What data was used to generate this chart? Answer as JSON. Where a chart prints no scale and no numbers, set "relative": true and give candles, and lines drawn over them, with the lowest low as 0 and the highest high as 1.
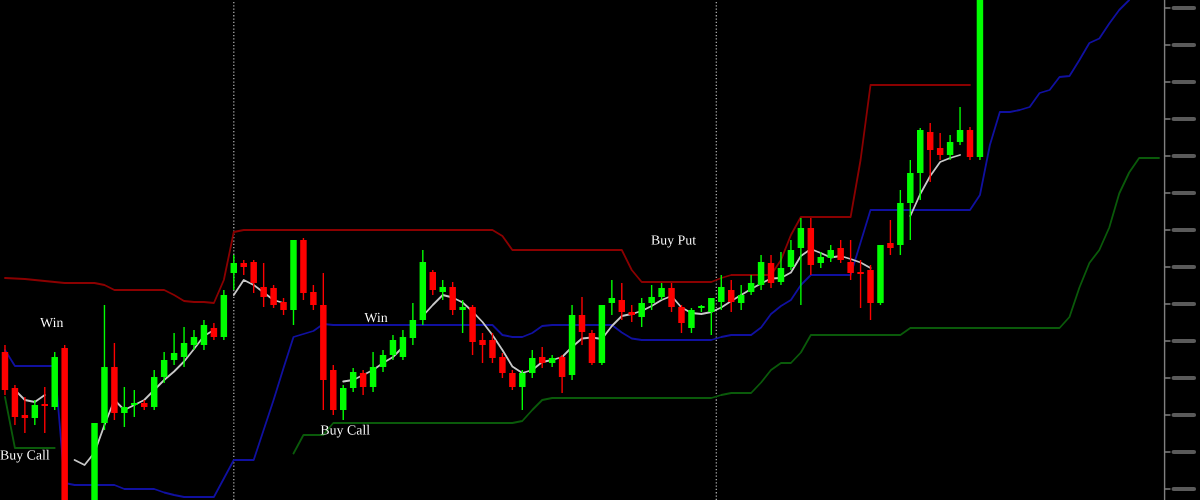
{
  "chart_data": {
    "type": "candlestick",
    "relative": true,
    "categories": [
      null,
      null,
      null,
      null,
      null,
      null,
      null,
      null,
      null,
      null,
      null,
      null,
      null,
      null,
      null,
      null,
      null,
      null,
      null,
      null,
      null,
      null,
      null,
      null,
      null,
      null,
      null,
      null,
      null,
      null,
      null,
      null,
      null,
      null,
      null,
      null,
      null,
      null,
      null,
      null,
      null,
      null,
      null,
      null,
      null,
      null,
      null,
      null,
      null,
      null,
      null,
      null,
      null,
      null,
      null,
      null,
      null,
      null,
      null,
      null,
      null,
      null,
      null,
      null,
      null,
      null,
      null,
      null,
      null,
      null,
      null,
      null,
      null,
      null,
      null,
      null,
      null,
      null,
      null,
      null,
      null,
      null,
      null,
      null,
      null,
      null,
      null,
      null,
      null,
      null,
      null,
      null,
      null,
      null,
      null,
      null,
      null,
      null,
      null,
      null,
      null,
      null,
      null,
      null,
      null,
      null,
      null,
      null,
      null,
      null,
      null,
      null,
      null,
      null,
      null,
      null,
      null
    ],
    "ohlc": [
      [
        0.296,
        0.31,
        0.21,
        0.22
      ],
      [
        0.224,
        0.23,
        0.15,
        0.166
      ],
      [
        0.17,
        0.206,
        0.134,
        0.164
      ],
      [
        0.164,
        0.2,
        0.15,
        0.19
      ],
      [
        0.19,
        0.226,
        0.134,
        0.188
      ],
      [
        0.186,
        0.296,
        0.18,
        0.286
      ],
      [
        0.304,
        0.31,
        0,
        0
      ],
      null,
      null,
      [
        0,
        0.154,
        0,
        0.154
      ],
      [
        0.154,
        0.39,
        0.14,
        0.266
      ],
      [
        0.266,
        0.314,
        0.16,
        0.174
      ],
      [
        0.174,
        0.226,
        0.146,
        0.186
      ],
      [
        0.19,
        0.22,
        0.166,
        0.192
      ],
      [
        0.194,
        0.2,
        0.18,
        0.186
      ],
      [
        0.186,
        0.26,
        0.18,
        0.246
      ],
      [
        0.246,
        0.296,
        0.234,
        0.28
      ],
      [
        0.28,
        0.334,
        0.27,
        0.294
      ],
      [
        0.286,
        0.346,
        0.266,
        0.314
      ],
      [
        0.31,
        0.34,
        0.3,
        0.326
      ],
      [
        0.31,
        0.36,
        0.3,
        0.35
      ],
      [
        0.344,
        0.354,
        0.32,
        0.326
      ],
      [
        0.326,
        0.42,
        0.32,
        0.41
      ],
      [
        0.454,
        0.49,
        0.42,
        0.474
      ],
      [
        0.474,
        0.48,
        0.45,
        0.466
      ],
      [
        0.476,
        0.48,
        0.414,
        0.434
      ],
      [
        0.426,
        0.474,
        0.386,
        0.406
      ],
      [
        0.424,
        0.43,
        0.384,
        0.39
      ],
      [
        0.396,
        0.404,
        0.37,
        0.38
      ],
      [
        0.38,
        0.52,
        0.35,
        0.52
      ],
      [
        0.52,
        0.524,
        0.4,
        0.414
      ],
      [
        0.416,
        0.43,
        0.38,
        0.39
      ],
      [
        0.39,
        0.454,
        0.18,
        0.24
      ],
      [
        0.26,
        0.27,
        0.17,
        0.18
      ],
      [
        0.18,
        0.23,
        0.16,
        0.224
      ],
      [
        0.224,
        0.264,
        0.216,
        0.256
      ],
      [
        0.254,
        0.26,
        0.21,
        0.226
      ],
      [
        0.226,
        0.296,
        0.216,
        0.266
      ],
      [
        0.266,
        0.3,
        0.256,
        0.29
      ],
      [
        0.29,
        0.33,
        0.28,
        0.32
      ],
      [
        0.286,
        0.34,
        0.28,
        0.326
      ],
      [
        0.324,
        0.394,
        0.31,
        0.36
      ],
      [
        0.36,
        0.5,
        0.35,
        0.476
      ],
      [
        0.456,
        0.46,
        0.41,
        0.42
      ],
      [
        0.416,
        0.44,
        0.4,
        0.426
      ],
      [
        0.426,
        0.436,
        0.37,
        0.38
      ],
      [
        0.38,
        0.4,
        0.334,
        0.386
      ],
      [
        0.386,
        0.39,
        0.29,
        0.316
      ],
      [
        0.32,
        0.334,
        0.274,
        0.31
      ],
      [
        0.32,
        0.334,
        0.274,
        0.284
      ],
      [
        0.286,
        0.294,
        0.244,
        0.254
      ],
      [
        0.254,
        0.26,
        0.22,
        0.226
      ],
      [
        0.226,
        0.26,
        0.18,
        0.254
      ],
      [
        0.254,
        0.3,
        0.244,
        0.284
      ],
      [
        0.286,
        0.306,
        0.264,
        0.274
      ],
      [
        0.274,
        0.29,
        0.266,
        0.284
      ],
      [
        0.286,
        0.29,
        0.214,
        0.246
      ],
      [
        0.25,
        0.39,
        0.24,
        0.37
      ],
      [
        0.37,
        0.406,
        0.31,
        0.336
      ],
      [
        0.334,
        0.34,
        0.27,
        0.274
      ],
      [
        0.274,
        0.39,
        0.27,
        0.39
      ],
      [
        0.394,
        0.44,
        0.37,
        0.404
      ],
      [
        0.4,
        0.434,
        0.36,
        0.376
      ],
      [
        0.376,
        0.39,
        0.356,
        0.37
      ],
      [
        0.366,
        0.404,
        0.346,
        0.394
      ],
      [
        0.394,
        0.43,
        0.38,
        0.406
      ],
      [
        0.406,
        0.434,
        0.4,
        0.424
      ],
      [
        0.424,
        0.434,
        0.376,
        0.386
      ],
      [
        0.386,
        0.39,
        0.334,
        0.354
      ],
      [
        0.344,
        0.384,
        0.334,
        0.38
      ],
      [
        0.384,
        0.39,
        0.376,
        0.386
      ],
      [
        0.376,
        0.404,
        0.33,
        0.404
      ],
      [
        0.396,
        0.45,
        0.38,
        0.426
      ],
      [
        0.42,
        0.44,
        0.376,
        0.396
      ],
      [
        0.394,
        0.43,
        0.38,
        0.41
      ],
      [
        0.416,
        0.45,
        0.41,
        0.434
      ],
      [
        0.43,
        0.49,
        0.42,
        0.476
      ],
      [
        0.474,
        0.49,
        0.424,
        0.434
      ],
      [
        0.436,
        0.496,
        0.43,
        0.464
      ],
      [
        0.466,
        0.52,
        0.46,
        0.5
      ],
      [
        0.504,
        0.564,
        0.39,
        0.544
      ],
      [
        0.544,
        0.564,
        0.45,
        0.47
      ],
      [
        0.474,
        0.496,
        0.464,
        0.486
      ],
      [
        0.484,
        0.51,
        0.476,
        0.5
      ],
      [
        0.504,
        0.52,
        0.474,
        0.48
      ],
      [
        0.476,
        0.52,
        0.44,
        0.454
      ],
      [
        0.456,
        0.48,
        0.384,
        0.452
      ],
      [
        0.46,
        0.47,
        0.36,
        0.394
      ],
      [
        0.394,
        0.51,
        0.39,
        0.51
      ],
      [
        0.514,
        0.56,
        0.49,
        0.504
      ],
      [
        0.51,
        0.62,
        0.49,
        0.594
      ],
      [
        0.594,
        0.68,
        0.52,
        0.654
      ],
      [
        0.654,
        0.744,
        0.6,
        0.74
      ],
      [
        0.736,
        0.754,
        0.636,
        0.7
      ],
      [
        0.704,
        0.734,
        0.68,
        0.69
      ],
      [
        0.69,
        0.73,
        0.68,
        0.716
      ],
      [
        0.716,
        0.786,
        0.71,
        0.74
      ],
      [
        0.74,
        0.746,
        0.68,
        0.686
      ],
      [
        0.686,
        1,
        0.68,
        1
      ],
      null,
      null,
      null,
      null,
      null,
      null,
      null,
      null,
      null,
      null,
      null,
      null,
      null,
      null,
      null,
      null,
      null,
      null
    ],
    "colors": [
      "#ff0000",
      "#ff0000",
      "#ff0000",
      "#00ff00",
      "#ff0000",
      "#00ff00",
      "#ff0000",
      null,
      null,
      "#00ff00",
      "#00ff00",
      "#ff0000",
      "#00ff00",
      "#00ff00",
      "#ff0000",
      "#00ff00",
      "#00ff00",
      "#00ff00",
      "#00ff00",
      "#00ff00",
      "#00ff00",
      "#ff0000",
      "#00ff00",
      "#00ff00",
      "#ff0000",
      "#ff0000",
      "#ff0000",
      "#ff0000",
      "#ff0000",
      "#00ff00",
      "#ff0000",
      "#ff0000",
      "#ff0000",
      "#ff0000",
      "#00ff00",
      "#00ff00",
      "#ff0000",
      "#00ff00",
      "#00ff00",
      "#00ff00",
      "#00ff00",
      "#00ff00",
      "#00ff00",
      "#ff0000",
      "#00ff00",
      "#ff0000",
      "#00ff00",
      "#ff0000",
      "#ff0000",
      "#ff0000",
      "#ff0000",
      "#ff0000",
      "#00ff00",
      "#00ff00",
      "#ff0000",
      "#00ff00",
      "#ff0000",
      "#00ff00",
      "#ff0000",
      "#ff0000",
      "#00ff00",
      "#00ff00",
      "#ff0000",
      "#ff0000",
      "#00ff00",
      "#00ff00",
      "#00ff00",
      "#ff0000",
      "#ff0000",
      "#00ff00",
      "#00ff00",
      "#00ff00",
      "#00ff00",
      "#ff0000",
      "#00ff00",
      "#00ff00",
      "#00ff00",
      "#ff0000",
      "#00ff00",
      "#00ff00",
      "#00ff00",
      "#ff0000",
      "#00ff00",
      "#00ff00",
      "#ff0000",
      "#ff0000",
      "#ff0000",
      "#ff0000",
      "#00ff00",
      "#ff0000",
      "#00ff00",
      "#00ff00",
      "#00ff00",
      "#ff0000",
      "#ff0000",
      "#00ff00",
      "#00ff00",
      "#ff0000",
      "#00ff00",
      null,
      null,
      null,
      null,
      null,
      null,
      null,
      null,
      null,
      null,
      null,
      null,
      null,
      null,
      null,
      null,
      null,
      null
    ],
    "series": [
      {
        "type": "line",
        "color": "#8b0000",
        "values": [
          0.444,
          0.443,
          0.442,
          0.44,
          0.438,
          0.436,
          0.434,
          0.434,
          0.434,
          0.434,
          0.43,
          0.42,
          0.42,
          0.42,
          0.42,
          0.42,
          0.42,
          0.41,
          0.398,
          0.396,
          0.396,
          0.394,
          0.44,
          0.536,
          0.54,
          0.54,
          0.54,
          0.54,
          0.54,
          0.54,
          0.54,
          0.54,
          0.54,
          0.54,
          0.54,
          0.54,
          0.54,
          0.54,
          0.54,
          0.54,
          0.54,
          0.54,
          0.54,
          0.54,
          0.54,
          0.54,
          0.54,
          0.54,
          0.54,
          0.54,
          0.528,
          0.5,
          0.5,
          0.5,
          0.5,
          0.5,
          0.5,
          0.5,
          0.5,
          0.5,
          0.5,
          0.5,
          0.5,
          0.46,
          0.436,
          0.436,
          0.436,
          0.436,
          0.436,
          0.436,
          0.436,
          0.436,
          0.444,
          0.45,
          0.45,
          0.45,
          0.45,
          0.45,
          0.48,
          0.53,
          0.566,
          0.566,
          0.566,
          0.566,
          0.566,
          0.566,
          0.68,
          0.83,
          0.83,
          0.83,
          0.83,
          0.83,
          0.83,
          0.83,
          0.83,
          0.83,
          0.83,
          0.83,
          null,
          null,
          null,
          null,
          null,
          null,
          null,
          null,
          null,
          null,
          null,
          null,
          null,
          null,
          null,
          null,
          null,
          null,
          null
        ]
      },
      {
        "type": "line",
        "color": "#1010a0",
        "values": [
          0.3,
          0.268,
          0.268,
          0.268,
          0.268,
          0.268,
          0.034,
          0.03,
          0.03,
          0.03,
          0.03,
          0.03,
          0.022,
          0.022,
          0.022,
          0.022,
          0.015,
          0.01,
          0.006,
          0.006,
          0.006,
          0.006,
          0.043,
          0.08,
          0.08,
          0.08,
          0.14,
          0.2,
          0.264,
          0.326,
          0.332,
          0.338,
          0.352,
          0.35,
          0.35,
          0.35,
          0.35,
          0.35,
          0.35,
          0.35,
          0.35,
          0.35,
          0.35,
          0.35,
          0.35,
          0.35,
          0.35,
          0.35,
          0.35,
          0.35,
          0.33,
          0.326,
          0.326,
          0.334,
          0.348,
          0.35,
          0.35,
          0.35,
          0.35,
          0.35,
          0.35,
          0.35,
          0.335,
          0.323,
          0.32,
          0.32,
          0.32,
          0.32,
          0.32,
          0.32,
          0.32,
          0.32,
          0.326,
          0.33,
          0.33,
          0.33,
          0.345,
          0.372,
          0.388,
          0.4,
          0.43,
          0.45,
          0.45,
          0.45,
          0.45,
          0.45,
          0.515,
          0.58,
          0.58,
          0.58,
          0.58,
          0.58,
          0.58,
          0.58,
          0.58,
          0.58,
          0.58,
          0.58,
          0.61,
          0.71,
          0.776,
          0.776,
          0.78,
          0.786,
          0.814,
          0.82,
          0.846,
          0.848,
          0.88,
          0.914,
          0.923,
          0.953,
          0.98,
          1,
          null,
          null,
          null
        ]
      },
      {
        "type": "line",
        "color": "#0a5a0a",
        "values": [
          0.206,
          0.104,
          0.104,
          0.104,
          0.104,
          0.104,
          null,
          null,
          null,
          null,
          null,
          null,
          null,
          null,
          null,
          null,
          null,
          null,
          null,
          null,
          null,
          null,
          null,
          null,
          null,
          null,
          null,
          null,
          null,
          0.093,
          0.13,
          0.13,
          0.13,
          0.154,
          0.154,
          0.154,
          0.154,
          0.154,
          0.154,
          0.154,
          0.154,
          0.154,
          0.154,
          0.154,
          0.154,
          0.154,
          0.154,
          0.154,
          0.154,
          0.154,
          0.154,
          0.154,
          0.158,
          0.18,
          0.2,
          0.204,
          0.204,
          0.204,
          0.204,
          0.204,
          0.204,
          0.204,
          0.204,
          0.204,
          0.204,
          0.204,
          0.204,
          0.204,
          0.204,
          0.204,
          0.204,
          0.204,
          0.21,
          0.214,
          0.214,
          0.214,
          0.235,
          0.26,
          0.274,
          0.274,
          0.295,
          0.33,
          0.33,
          0.33,
          0.33,
          0.33,
          0.33,
          0.33,
          0.33,
          0.33,
          0.33,
          0.344,
          0.344,
          0.344,
          0.344,
          0.344,
          0.344,
          0.344,
          0.344,
          0.344,
          0.344,
          0.344,
          0.344,
          0.344,
          0.344,
          0.344,
          0.344,
          0.366,
          0.425,
          0.474,
          0.5,
          0.545,
          0.613,
          0.655,
          0.684,
          0.684,
          0.684
        ]
      },
      {
        "type": "line",
        "color": "#c8c8c8",
        "values": [
          null,
          0.22,
          0.2,
          0.196,
          0.21,
          null,
          null,
          0.08,
          0.07,
          0.095,
          0.15,
          0.2,
          0.18,
          0.19,
          0.2,
          0.22,
          0.24,
          0.257,
          0.277,
          0.302,
          0.328,
          0.34,
          null,
          0.41,
          0.44,
          0.43,
          0.415,
          0.4,
          0.394,
          null,
          null,
          null,
          null,
          null,
          0.237,
          0.24,
          0.25,
          0.26,
          0.274,
          0.286,
          0.306,
          null,
          0.368,
          0.39,
          0.41,
          0.405,
          0.395,
          0.377,
          0.356,
          0.33,
          0.3,
          0.267,
          0.254,
          0.26,
          0.276,
          0.28,
          0.286,
          0.306,
          0.323,
          0.325,
          0.322,
          0.348,
          0.368,
          0.372,
          0.378,
          0.388,
          0.4,
          0.408,
          0.385,
          0.374,
          0.372,
          0.376,
          0.385,
          0.398,
          0.41,
          0.422,
          0.433,
          0.443,
          0.444,
          0.455,
          0.488,
          0.502,
          0.494,
          0.485,
          0.488,
          0.482,
          0.475,
          0.464,
          null,
          null,
          null,
          0.568,
          0.612,
          0.648,
          0.676,
          0.684,
          0.69,
          null,
          null,
          null,
          null,
          null,
          null,
          null,
          null,
          null,
          null,
          null,
          null,
          null,
          null,
          null,
          null,
          null,
          null,
          null,
          null
        ]
      }
    ],
    "annotations": [
      "Win",
      "Buy Call",
      "Buy Call",
      "Win",
      "Buy Put"
    ]
  }
}
